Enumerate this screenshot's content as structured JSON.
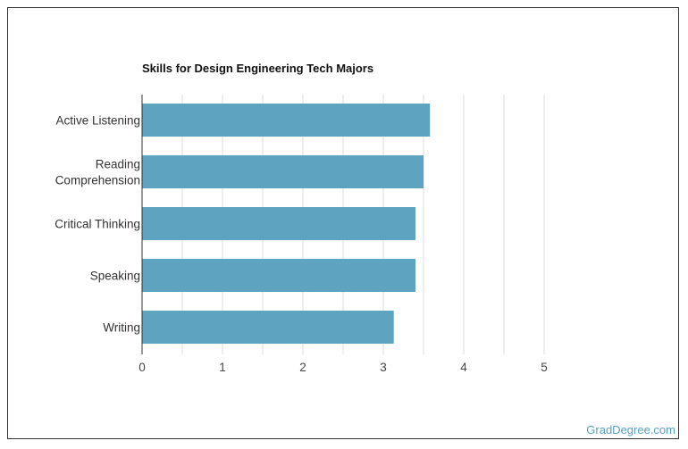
{
  "chart_data": {
    "type": "bar",
    "orientation": "horizontal",
    "title": "Skills for Design Engineering Tech Majors",
    "categories": [
      [
        "Active Listening"
      ],
      [
        "Reading",
        "Comprehension"
      ],
      [
        "Critical Thinking"
      ],
      [
        "Speaking"
      ],
      [
        "Writing"
      ]
    ],
    "values": [
      3.58,
      3.5,
      3.4,
      3.4,
      3.13
    ],
    "xlim": [
      0,
      5
    ],
    "x_ticks": [
      "0",
      "1",
      "2",
      "3",
      "4",
      "5"
    ],
    "grid": true,
    "colors": {
      "bar": "#5ea3c0",
      "grid": "#dddddd",
      "axis": "#333333"
    }
  },
  "brand": "GradDegree.com"
}
